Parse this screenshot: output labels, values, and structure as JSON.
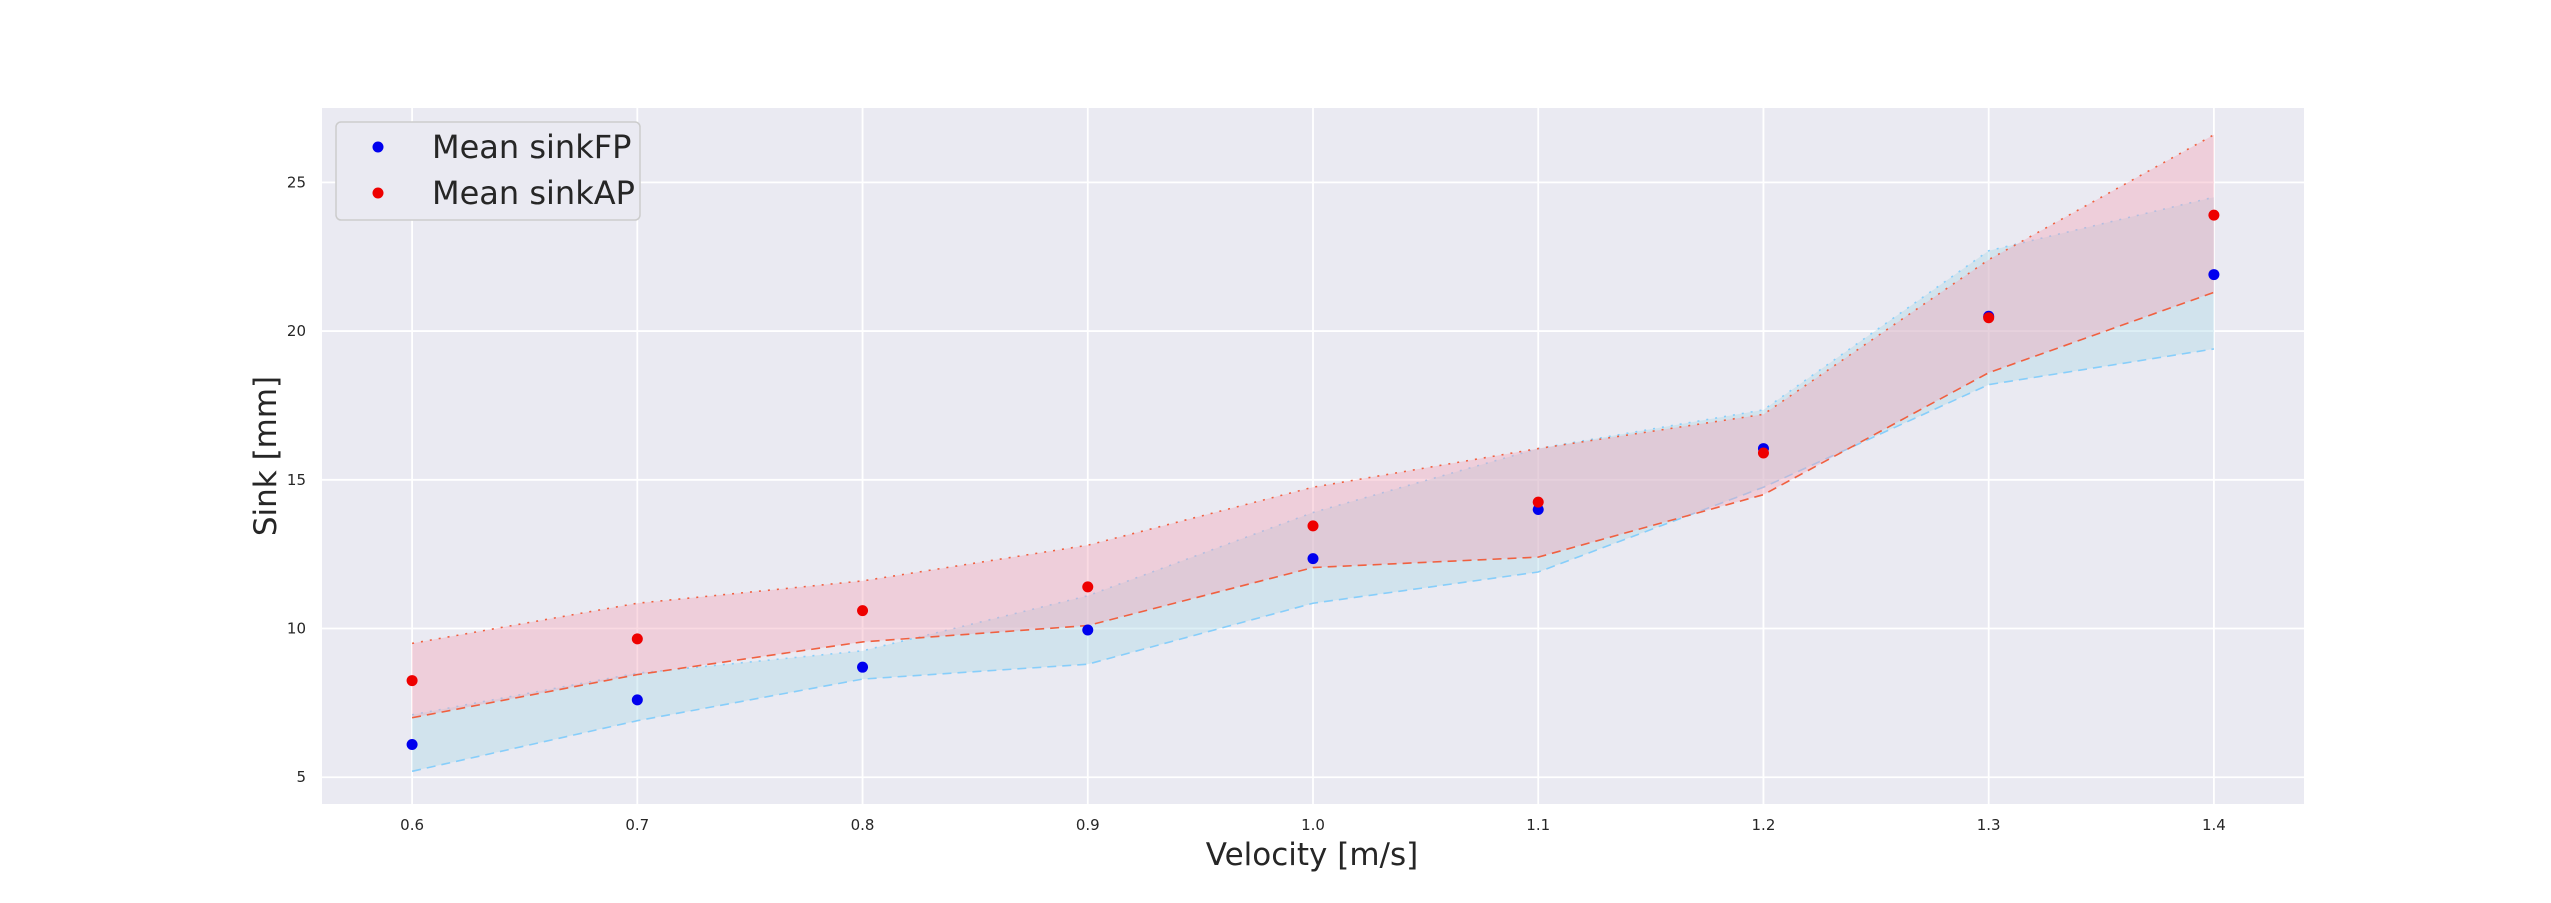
{
  "chart_data": {
    "type": "scatter",
    "title": "",
    "xlabel": "Velocity [m/s]",
    "ylabel": "Sink [mm]",
    "xlim": [
      0.56,
      1.44
    ],
    "ylim": [
      4.1,
      27.5
    ],
    "x": [
      0.6,
      0.7,
      0.8,
      0.9,
      1.0,
      1.1,
      1.2,
      1.3,
      1.4
    ],
    "xticks": [
      "0.6",
      "0.7",
      "0.8",
      "0.9",
      "1.0",
      "1.1",
      "1.2",
      "1.3",
      "1.4"
    ],
    "yticks": [
      "5",
      "10",
      "15",
      "20",
      "25"
    ],
    "grid": true,
    "legend_position": "top-left",
    "series": [
      {
        "name": "Mean sinkFP",
        "color": "#0000ee",
        "band_color": "#add8e6",
        "band_line_color": "#87cefa",
        "values": [
          6.1,
          7.6,
          8.7,
          9.95,
          12.35,
          14.0,
          16.05,
          20.5,
          21.9
        ],
        "lower": [
          5.2,
          6.9,
          8.3,
          8.8,
          10.85,
          11.9,
          14.75,
          18.2,
          19.4
        ],
        "upper": [
          7.1,
          8.5,
          9.25,
          11.1,
          13.9,
          16.05,
          17.35,
          22.7,
          24.5
        ]
      },
      {
        "name": "Mean sinkAP",
        "color": "#ee0000",
        "band_color": "#f4a7b9",
        "band_line_color": "#f06040",
        "values": [
          8.25,
          9.65,
          10.6,
          11.4,
          13.45,
          14.25,
          15.9,
          20.45,
          23.9
        ],
        "lower": [
          7.0,
          8.45,
          9.55,
          10.1,
          12.05,
          12.4,
          14.5,
          18.6,
          21.3
        ],
        "upper": [
          9.5,
          10.85,
          11.6,
          12.8,
          14.75,
          16.05,
          17.2,
          22.4,
          26.6
        ]
      }
    ]
  }
}
